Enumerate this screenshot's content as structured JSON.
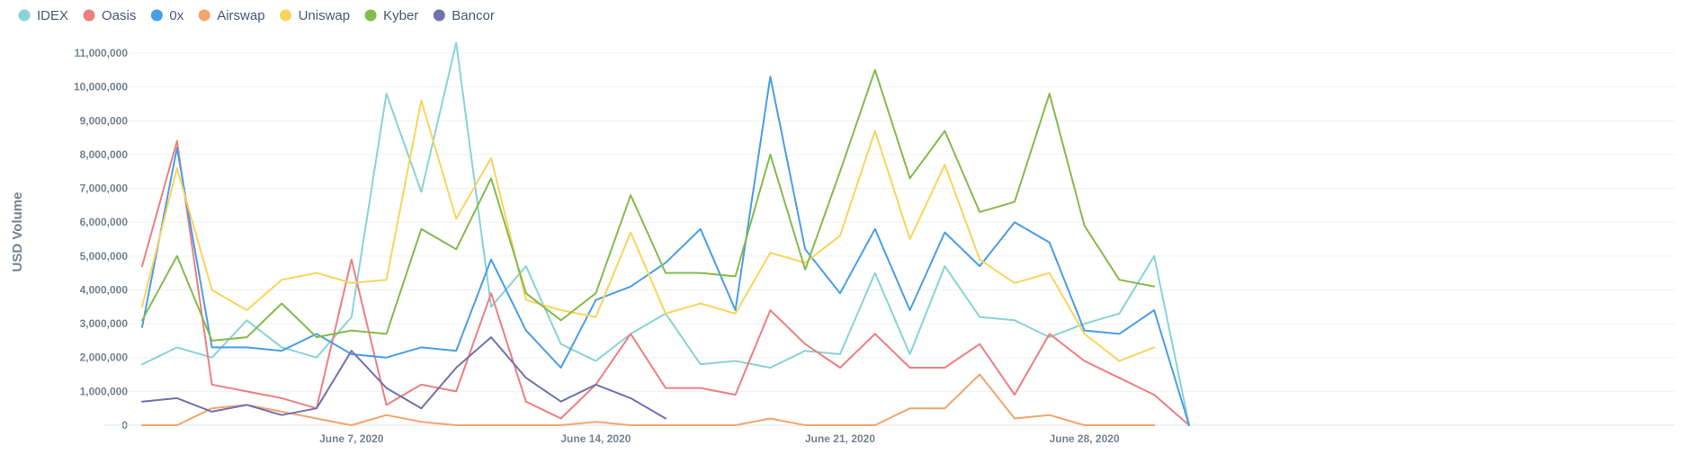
{
  "chart_data": {
    "type": "line",
    "title": "",
    "xlabel": "",
    "ylabel": "USD Volume",
    "ylim": [
      0,
      11000000
    ],
    "grid": true,
    "legend_position": "top-left",
    "x_start_date": "2020-06-01",
    "x": [
      "2020-06-01",
      "2020-06-02",
      "2020-06-03",
      "2020-06-04",
      "2020-06-05",
      "2020-06-06",
      "2020-06-07",
      "2020-06-08",
      "2020-06-09",
      "2020-06-10",
      "2020-06-11",
      "2020-06-12",
      "2020-06-13",
      "2020-06-14",
      "2020-06-15",
      "2020-06-16",
      "2020-06-17",
      "2020-06-18",
      "2020-06-19",
      "2020-06-20",
      "2020-06-21",
      "2020-06-22",
      "2020-06-23",
      "2020-06-24",
      "2020-06-25",
      "2020-06-26",
      "2020-06-27",
      "2020-06-28",
      "2020-06-29",
      "2020-06-30",
      "2020-07-01"
    ],
    "x_ticks": [
      {
        "date": "2020-06-07",
        "label": "June 7, 2020"
      },
      {
        "date": "2020-06-14",
        "label": "June 14, 2020"
      },
      {
        "date": "2020-06-21",
        "label": "June 21, 2020"
      },
      {
        "date": "2020-06-28",
        "label": "June 28, 2020"
      }
    ],
    "y_ticks": [
      {
        "value": 0,
        "label": "0"
      },
      {
        "value": 1000000,
        "label": "1,000,000"
      },
      {
        "value": 2000000,
        "label": "2,000,000"
      },
      {
        "value": 3000000,
        "label": "3,000,000"
      },
      {
        "value": 4000000,
        "label": "4,000,000"
      },
      {
        "value": 5000000,
        "label": "5,000,000"
      },
      {
        "value": 6000000,
        "label": "6,000,000"
      },
      {
        "value": 7000000,
        "label": "7,000,000"
      },
      {
        "value": 8000000,
        "label": "8,000,000"
      },
      {
        "value": 9000000,
        "label": "9,000,000"
      },
      {
        "value": 10000000,
        "label": "10,000,000"
      },
      {
        "value": 11000000,
        "label": "11,000,000"
      }
    ],
    "series": [
      {
        "name": "IDEX",
        "color": "#88d3d6",
        "values": [
          1800000,
          2300000,
          2000000,
          3100000,
          2300000,
          2000000,
          3200000,
          9800000,
          6900000,
          11300000,
          3500000,
          4700000,
          2400000,
          1900000,
          2700000,
          3300000,
          1800000,
          1900000,
          1700000,
          2200000,
          2100000,
          4500000,
          2100000,
          4700000,
          3200000,
          3100000,
          2600000,
          3000000,
          3300000,
          5000000,
          0
        ]
      },
      {
        "name": "Oasis",
        "color": "#ee7f7f",
        "values": [
          4700000,
          8400000,
          1200000,
          1000000,
          800000,
          500000,
          4900000,
          600000,
          1200000,
          1000000,
          3900000,
          700000,
          200000,
          1200000,
          2700000,
          1100000,
          1100000,
          900000,
          3400000,
          2400000,
          1700000,
          2700000,
          1700000,
          1700000,
          2400000,
          900000,
          2700000,
          1900000,
          1400000,
          900000,
          0
        ]
      },
      {
        "name": "0x",
        "color": "#4a9ee6",
        "values": [
          2900000,
          8200000,
          2300000,
          2300000,
          2200000,
          2700000,
          2100000,
          2000000,
          2300000,
          2200000,
          4900000,
          2800000,
          1700000,
          3700000,
          4100000,
          4800000,
          5800000,
          3400000,
          10300000,
          5200000,
          3900000,
          5800000,
          3400000,
          5700000,
          4700000,
          6000000,
          5400000,
          2800000,
          2700000,
          3400000,
          0
        ]
      },
      {
        "name": "Airswap",
        "color": "#f3a56d",
        "values": [
          0,
          0,
          500000,
          600000,
          400000,
          200000,
          0,
          300000,
          100000,
          0,
          0,
          0,
          0,
          100000,
          0,
          0,
          0,
          0,
          200000,
          0,
          0,
          0,
          500000,
          500000,
          1500000,
          200000,
          300000,
          0,
          0,
          0,
          null
        ]
      },
      {
        "name": "Uniswap",
        "color": "#f9d45c",
        "values": [
          3500000,
          7600000,
          4000000,
          3400000,
          4300000,
          4500000,
          4200000,
          4300000,
          9600000,
          6100000,
          7900000,
          3700000,
          3400000,
          3200000,
          5700000,
          3300000,
          3600000,
          3300000,
          5100000,
          4800000,
          5600000,
          8700000,
          5500000,
          7700000,
          4900000,
          4200000,
          4500000,
          2700000,
          1900000,
          2300000,
          null
        ]
      },
      {
        "name": "Kyber",
        "color": "#84bb4c",
        "values": [
          3100000,
          5000000,
          2500000,
          2600000,
          3600000,
          2600000,
          2800000,
          2700000,
          5800000,
          5200000,
          7300000,
          3900000,
          3100000,
          3900000,
          6800000,
          4500000,
          4500000,
          4400000,
          8000000,
          4600000,
          7500000,
          10500000,
          7300000,
          8700000,
          6300000,
          6600000,
          9800000,
          5900000,
          4300000,
          4100000,
          null
        ]
      },
      {
        "name": "Bancor",
        "color": "#7172ad",
        "values": [
          700000,
          800000,
          400000,
          600000,
          300000,
          500000,
          2200000,
          1100000,
          500000,
          1700000,
          2600000,
          1400000,
          700000,
          1200000,
          800000,
          200000,
          null,
          null,
          null,
          null,
          null,
          null,
          null,
          null,
          null,
          null,
          null,
          null,
          null,
          null,
          null
        ]
      }
    ]
  }
}
